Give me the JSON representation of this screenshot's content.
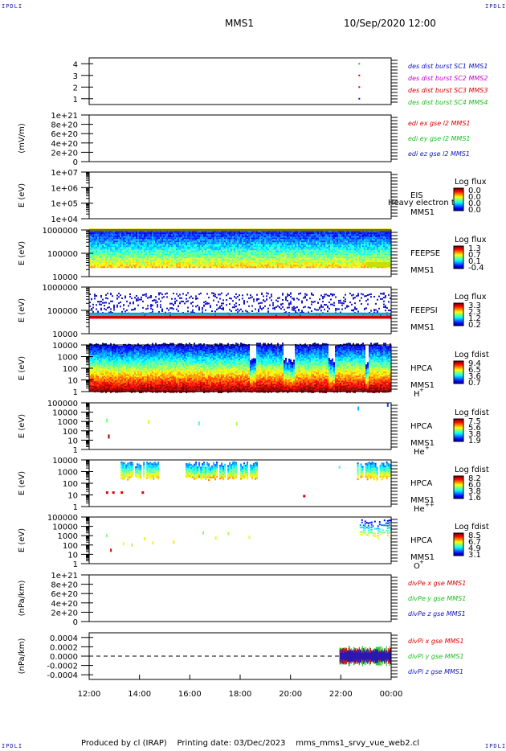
{
  "header": {
    "corner_tl": "IPDLI",
    "corner_tr": "IPDLI",
    "corner_bl": "IPDLI",
    "corner_br": "IPDLI",
    "mission": "MMS1",
    "datetime": "10/Sep/2020 12:00"
  },
  "footer": {
    "produced_by": "Produced by cl (IRAP)",
    "printing_date": "Printing date: 03/Dec/2023",
    "filename": "mms_mms1_srvy_vue_web2.cl"
  },
  "colors": {
    "blue": "#1616c8",
    "red": "#e00000",
    "green": "#20c020",
    "magenta": "#d000d0"
  },
  "chart_data": [
    {
      "type": "scatter",
      "panel": "burst",
      "yticks": [
        "1",
        "2",
        "3",
        "4"
      ],
      "ylim": [
        0.5,
        4.5
      ],
      "legend": [
        {
          "text": "des dist burst SC1 MMS1",
          "color": "#1616c8"
        },
        {
          "text": "des dist burst SC2 MMS2",
          "color": "#d000d0"
        },
        {
          "text": "des dist burst SC3 MMS3",
          "color": "#e00000"
        },
        {
          "text": "des dist burst SC4 MMS4",
          "color": "#20c020"
        }
      ],
      "points": [
        {
          "x": "22:42",
          "y": 4,
          "color": "#20c020"
        },
        {
          "x": "22:42",
          "y": 3,
          "color": "#e00000"
        },
        {
          "x": "22:42",
          "y": 2,
          "color": "#e00000"
        },
        {
          "x": "22:42",
          "y": 1,
          "color": "#1616c8"
        }
      ]
    },
    {
      "type": "line",
      "panel": "edi",
      "ylabel": "(mV/m)",
      "yticks": [
        "0",
        "2e+20",
        "4e+20",
        "6e+20",
        "8e+20",
        "1e+21"
      ],
      "ylim": [
        0,
        1e+21
      ],
      "legend": [
        {
          "text": "edi ex gse l2 MMS1",
          "color": "#e00000"
        },
        {
          "text": "edi ey gse l2 MMS1",
          "color": "#20c020"
        },
        {
          "text": "edi ez gse l2 MMS1",
          "color": "#1616c8"
        }
      ]
    },
    {
      "type": "heatmap",
      "panel": "eis",
      "ylabel": "E (eV)",
      "yticks": [
        "1e+04",
        "1e+05",
        "1e+06",
        "1e+07"
      ],
      "ylim": [
        10000,
        10000000
      ],
      "label_lines": [
        "EIS",
        "MMS1"
      ],
      "overlay_text": "Heavy electron to",
      "cbar_title": "Log flux",
      "cbar_ticks": [
        "0.0",
        "0.0",
        "0.0",
        "0.0"
      ]
    },
    {
      "type": "heatmap",
      "panel": "feeps-e",
      "ylabel": "E (eV)",
      "yticks": [
        "10000",
        "100000",
        "1000000"
      ],
      "ylim": [
        10000,
        1000000
      ],
      "label_lines": [
        "FEEPSE",
        "MMS1"
      ],
      "cbar_title": "Log flux",
      "cbar_ticks": [
        "1.3",
        "0.7",
        "0.1",
        "-0.4"
      ]
    },
    {
      "type": "heatmap",
      "panel": "feeps-i",
      "ylabel": "E (eV)",
      "yticks": [
        "10000",
        "100000",
        "1000000"
      ],
      "ylim": [
        10000,
        1000000
      ],
      "label_lines": [
        "FEEPSI",
        "MMS1"
      ],
      "cbar_title": "Log flux",
      "cbar_ticks": [
        "3.3",
        "2.3",
        "1.2",
        "0.2"
      ]
    },
    {
      "type": "heatmap",
      "panel": "hpca-h",
      "ylabel": "E (eV)",
      "yticks": [
        "1",
        "10",
        "100",
        "1000",
        "10000"
      ],
      "ylim": [
        1,
        10000
      ],
      "label_lines": [
        "HPCA",
        "MMS1"
      ],
      "species": "H",
      "species_sup": "+",
      "cbar_title": "Log fdist",
      "cbar_ticks": [
        "9.4",
        "6.5",
        "3.6",
        "0.7"
      ]
    },
    {
      "type": "heatmap",
      "panel": "hpca-he1",
      "ylabel": "E (eV)",
      "yticks": [
        "1",
        "10",
        "100",
        "1000",
        "10000",
        "100000"
      ],
      "ylim": [
        1,
        100000
      ],
      "label_lines": [
        "HPCA",
        "MMS1"
      ],
      "species": "He",
      "species_sup": "+",
      "cbar_title": "Log fdist",
      "cbar_ticks": [
        "7.5",
        "5.6",
        "3.8",
        "1.9"
      ]
    },
    {
      "type": "heatmap",
      "panel": "hpca-he2",
      "ylabel": "E (eV)",
      "yticks": [
        "1",
        "10",
        "100",
        "1000",
        "10000"
      ],
      "ylim": [
        1,
        10000
      ],
      "label_lines": [
        "HPCA",
        "MMS1"
      ],
      "species": "He",
      "species_sup": "++",
      "cbar_title": "Log fdist",
      "cbar_ticks": [
        "8.2",
        "6.0",
        "3.8",
        "1.6"
      ]
    },
    {
      "type": "heatmap",
      "panel": "hpca-o",
      "ylabel": "E (eV)",
      "yticks": [
        "1",
        "10",
        "100",
        "1000",
        "10000",
        "100000"
      ],
      "ylim": [
        1,
        100000
      ],
      "label_lines": [
        "HPCA",
        "MMS1"
      ],
      "species": "O",
      "species_sup": "+",
      "cbar_title": "Log fdist",
      "cbar_ticks": [
        "8.5",
        "6.7",
        "4.9",
        "3.1"
      ]
    },
    {
      "type": "line",
      "panel": "divpe",
      "ylabel": "(nPa/km)",
      "yticks": [
        "0",
        "2e+20",
        "4e+20",
        "6e+20",
        "8e+20",
        "1e+21"
      ],
      "ylim": [
        0,
        1e+21
      ],
      "legend": [
        {
          "text": "divPe x gse MMS1",
          "color": "#e00000"
        },
        {
          "text": "divPe y gse MMS1",
          "color": "#20c020"
        },
        {
          "text": "divPe z gse MMS1",
          "color": "#1616c8"
        }
      ]
    },
    {
      "type": "line",
      "panel": "divpi",
      "ylabel": "(nPa/km)",
      "yticks": [
        "-0.0004",
        "-0.0002",
        "0.0000",
        "0.0002",
        "0.0004"
      ],
      "ylim": [
        -0.0005,
        0.0005
      ],
      "legend": [
        {
          "text": "divPi x gse MMS1",
          "color": "#e00000"
        },
        {
          "text": "divPi y gse MMS1",
          "color": "#20c020"
        },
        {
          "text": "divPi z gse MMS1",
          "color": "#1616c8"
        }
      ],
      "noise_start": "21:58",
      "noise_amplitude": 0.0002
    }
  ],
  "time_axis": {
    "ticks": [
      "12:00",
      "14:00",
      "16:00",
      "18:00",
      "20:00",
      "22:00",
      "00:00"
    ],
    "start": "12:00",
    "end": "00:00"
  }
}
